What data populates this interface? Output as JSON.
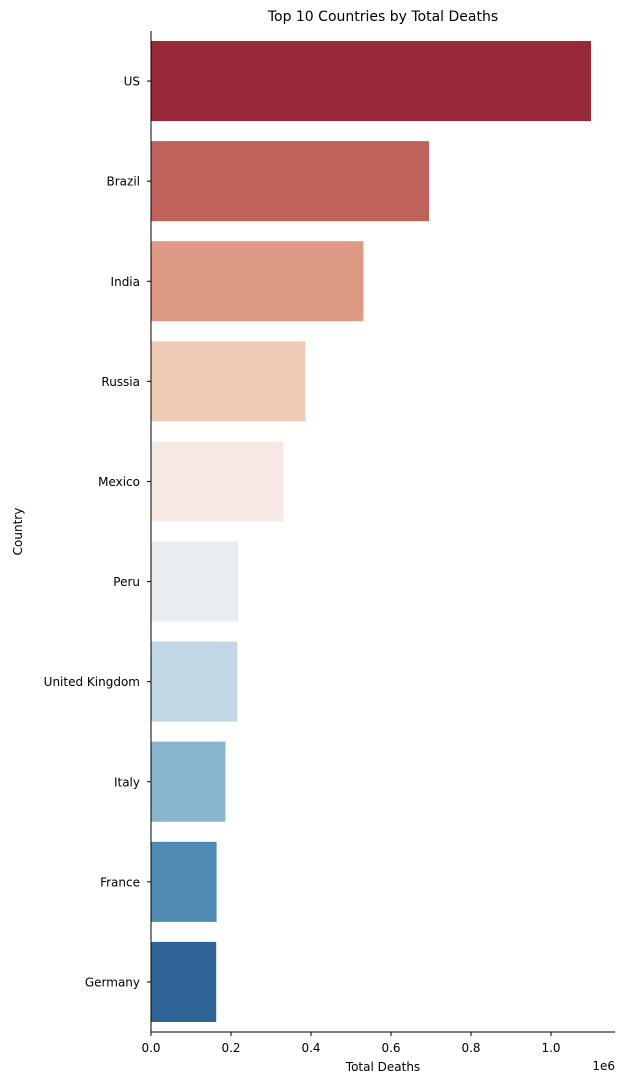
{
  "chart_data": {
    "type": "bar",
    "orientation": "horizontal",
    "title": "Top 10 Countries by Total Deaths",
    "xlabel": "Total Deaths",
    "ylabel": "Country",
    "x_offset_text": "1e6",
    "xlim": [
      0,
      1.16
    ],
    "x_scale": "values in units of 1e6",
    "x_ticks": [
      0.0,
      0.2,
      0.4,
      0.6,
      0.8,
      1.0
    ],
    "x_tick_labels": [
      "0.0",
      "0.2",
      "0.4",
      "0.6",
      "0.8",
      "1.0"
    ],
    "grid": false,
    "categories": [
      "US",
      "Brazil",
      "India",
      "Russia",
      "Mexico",
      "Peru",
      "United Kingdom",
      "Italy",
      "France",
      "Germany"
    ],
    "values": [
      1.1,
      0.695,
      0.531,
      0.386,
      0.331,
      0.219,
      0.216,
      0.186,
      0.164,
      0.163
    ],
    "colors": [
      "#982939",
      "#c0635b",
      "#dd9984",
      "#f0cbb6",
      "#f7eae5",
      "#e8edf1",
      "#c1d7e5",
      "#88b4cd",
      "#4f8bb3",
      "#2e6396"
    ]
  }
}
